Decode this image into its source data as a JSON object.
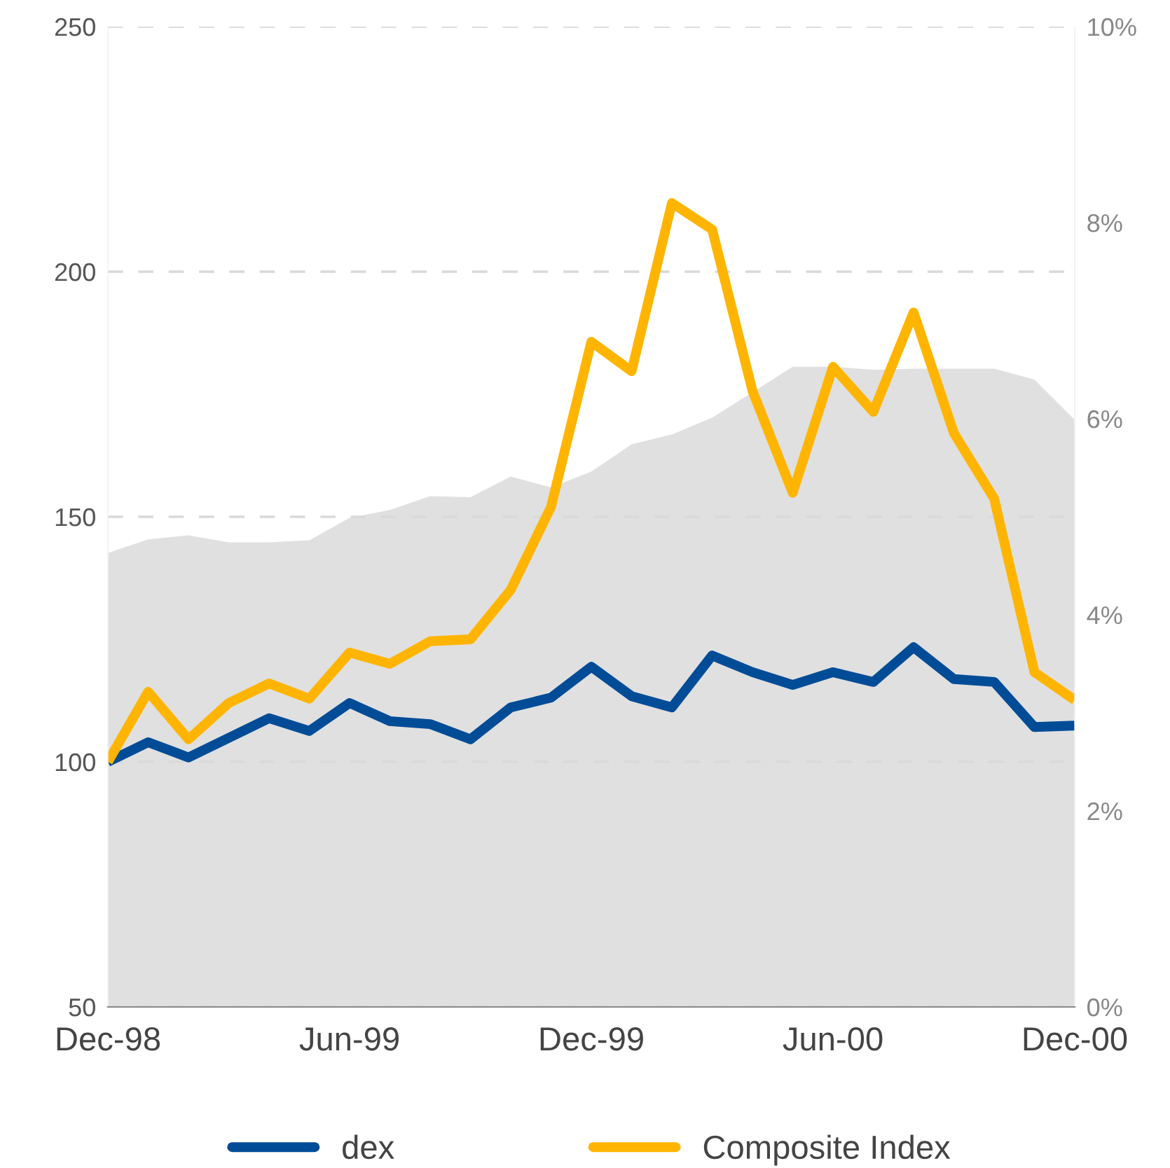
{
  "chart_data": {
    "type": "line",
    "categories": [
      "Dec-98",
      null,
      null,
      null,
      null,
      null,
      "Jun-99",
      null,
      null,
      null,
      null,
      null,
      "Dec-99",
      null,
      null,
      null,
      null,
      null,
      "Jun-00",
      null,
      null,
      null,
      null,
      null,
      "Dec-00"
    ],
    "series": [
      {
        "type": "area",
        "axis": "y2",
        "color": "#e0e0e0",
        "values": [
          4.63,
          4.77,
          4.81,
          4.74,
          4.74,
          4.76,
          4.99,
          5.07,
          5.21,
          5.2,
          5.41,
          5.3,
          5.46,
          5.74,
          5.84,
          6.01,
          6.27,
          6.53,
          6.53,
          6.5,
          6.51,
          6.51,
          6.51,
          6.4,
          5.99
        ]
      },
      {
        "name": "dex",
        "color": "#004c97",
        "values": [
          100,
          104,
          100.9,
          104.9,
          108.9,
          106.3,
          112,
          108.3,
          107.7,
          104.6,
          111.1,
          113.1,
          119.4,
          113.4,
          111.1,
          121.7,
          118.3,
          115.7,
          118.3,
          116.3,
          123.4,
          116.9,
          116.3,
          107.1,
          107.4
        ]
      },
      {
        "name": "Composite Index",
        "color": "#ffb500",
        "values": [
          100,
          114.3,
          104.6,
          112,
          116,
          112.9,
          122.3,
          120,
          124.6,
          125,
          135.1,
          152,
          185.7,
          179.7,
          214,
          208.6,
          175.7,
          154.9,
          180.6,
          171.4,
          191.7,
          167.1,
          153.7,
          118.3,
          112.6
        ]
      }
    ],
    "ylim": [
      50,
      250
    ],
    "yticks": [
      50,
      100,
      150,
      200,
      250
    ],
    "y2lim": [
      0,
      10
    ],
    "y2ticks": [
      {
        "value": 0,
        "label": "0%"
      },
      {
        "value": 2,
        "label": "2%"
      },
      {
        "value": 4,
        "label": "4%"
      },
      {
        "value": 6,
        "label": "6%"
      },
      {
        "value": 8,
        "label": "8%"
      },
      {
        "value": 10,
        "label": "10%"
      }
    ],
    "grid": "y",
    "legend": "bottom",
    "marker": "none",
    "line_style": "solid"
  }
}
